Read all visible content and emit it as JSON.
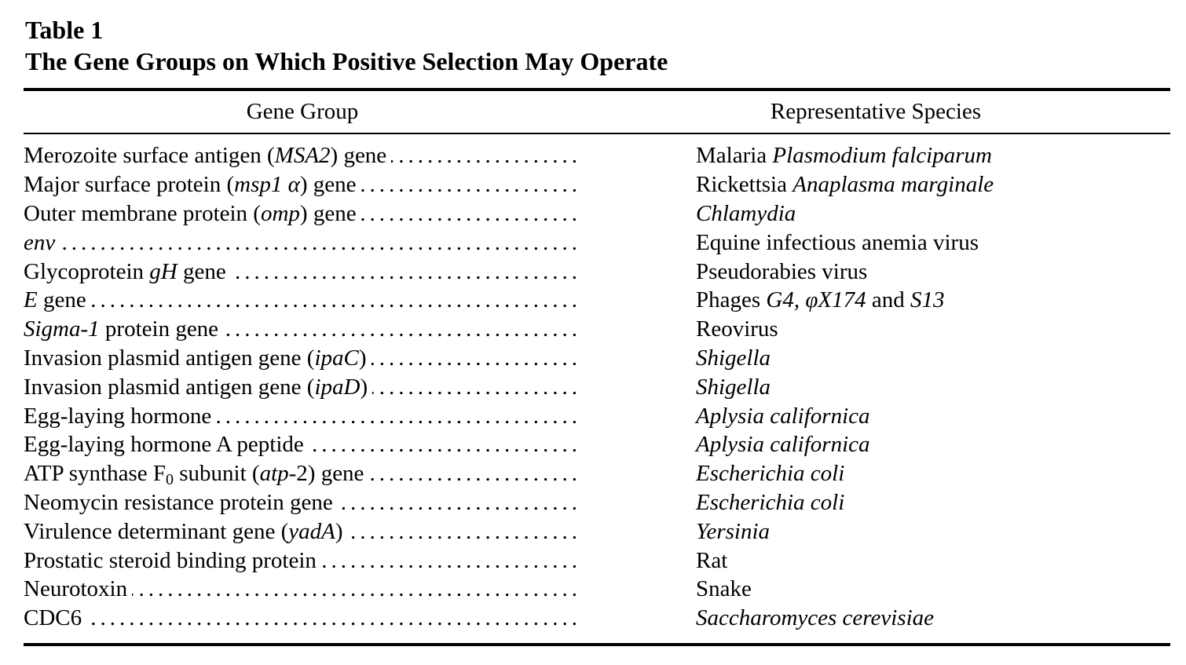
{
  "caption": {
    "label": "Table 1",
    "title": "The Gene Groups on Which Positive Selection May Operate"
  },
  "columns": [
    "Gene Group",
    "Representative Species"
  ],
  "rows": [
    {
      "gene": [
        {
          "t": "Merozoite surface antigen ("
        },
        {
          "t": "MSA2",
          "i": true
        },
        {
          "t": ") gene"
        }
      ],
      "species": [
        {
          "t": "Malaria "
        },
        {
          "t": "Plasmodium falciparum",
          "i": true
        }
      ]
    },
    {
      "gene": [
        {
          "t": "Major surface protein ("
        },
        {
          "t": "msp1 α",
          "i": true
        },
        {
          "t": ") gene"
        }
      ],
      "species": [
        {
          "t": "Rickettsia "
        },
        {
          "t": "Anaplasma marginale",
          "i": true
        }
      ]
    },
    {
      "gene": [
        {
          "t": "Outer membrane protein ("
        },
        {
          "t": "omp",
          "i": true
        },
        {
          "t": ") gene"
        }
      ],
      "species": [
        {
          "t": "Chlamydia",
          "i": true
        }
      ]
    },
    {
      "gene": [
        {
          "t": "env",
          "i": true
        }
      ],
      "species": [
        {
          "t": "Equine infectious anemia virus"
        }
      ]
    },
    {
      "gene": [
        {
          "t": "Glycoprotein "
        },
        {
          "t": "gH",
          "i": true
        },
        {
          "t": " gene"
        }
      ],
      "species": [
        {
          "t": "Pseudorabies virus"
        }
      ]
    },
    {
      "gene": [
        {
          "t": "E",
          "i": true
        },
        {
          "t": " gene"
        }
      ],
      "species": [
        {
          "t": "Phages "
        },
        {
          "t": "G4, φX174",
          "i": true
        },
        {
          "t": " and "
        },
        {
          "t": "S13",
          "i": true
        }
      ]
    },
    {
      "gene": [
        {
          "t": "Sigma-1",
          "i": true
        },
        {
          "t": " protein gene"
        }
      ],
      "species": [
        {
          "t": "Reovirus"
        }
      ]
    },
    {
      "gene": [
        {
          "t": "Invasion plasmid antigen gene ("
        },
        {
          "t": "ipaC",
          "i": true
        },
        {
          "t": ")"
        }
      ],
      "species": [
        {
          "t": "Shigella",
          "i": true
        }
      ]
    },
    {
      "gene": [
        {
          "t": "Invasion plasmid antigen gene ("
        },
        {
          "t": "ipaD",
          "i": true
        },
        {
          "t": ")"
        }
      ],
      "species": [
        {
          "t": "Shigella",
          "i": true
        }
      ]
    },
    {
      "gene": [
        {
          "t": "Egg-laying hormone"
        }
      ],
      "species": [
        {
          "t": "Aplysia californica",
          "i": true
        }
      ]
    },
    {
      "gene": [
        {
          "t": "Egg-laying hormone A peptide"
        }
      ],
      "species": [
        {
          "t": "Aplysia californica",
          "i": true
        }
      ]
    },
    {
      "gene": [
        {
          "t": "ATP synthase F"
        },
        {
          "t": "0",
          "sub": true
        },
        {
          "t": " subunit ("
        },
        {
          "t": "atp",
          "i": true
        },
        {
          "t": "-2) gene"
        }
      ],
      "species": [
        {
          "t": "Escherichia coli",
          "i": true
        }
      ]
    },
    {
      "gene": [
        {
          "t": "Neomycin resistance protein gene"
        }
      ],
      "species": [
        {
          "t": "Escherichia coli",
          "i": true
        }
      ]
    },
    {
      "gene": [
        {
          "t": "Virulence determinant gene ("
        },
        {
          "t": "yadA",
          "i": true
        },
        {
          "t": ")"
        }
      ],
      "species": [
        {
          "t": "Yersinia",
          "i": true
        }
      ]
    },
    {
      "gene": [
        {
          "t": "Prostatic steroid binding protein"
        }
      ],
      "species": [
        {
          "t": "Rat"
        }
      ]
    },
    {
      "gene": [
        {
          "t": "Neurotoxin"
        }
      ],
      "species": [
        {
          "t": "Snake"
        }
      ]
    },
    {
      "gene": [
        {
          "t": "CDC6"
        }
      ],
      "species": [
        {
          "t": "Saccharomyces cerevisiae",
          "i": true
        }
      ]
    }
  ]
}
